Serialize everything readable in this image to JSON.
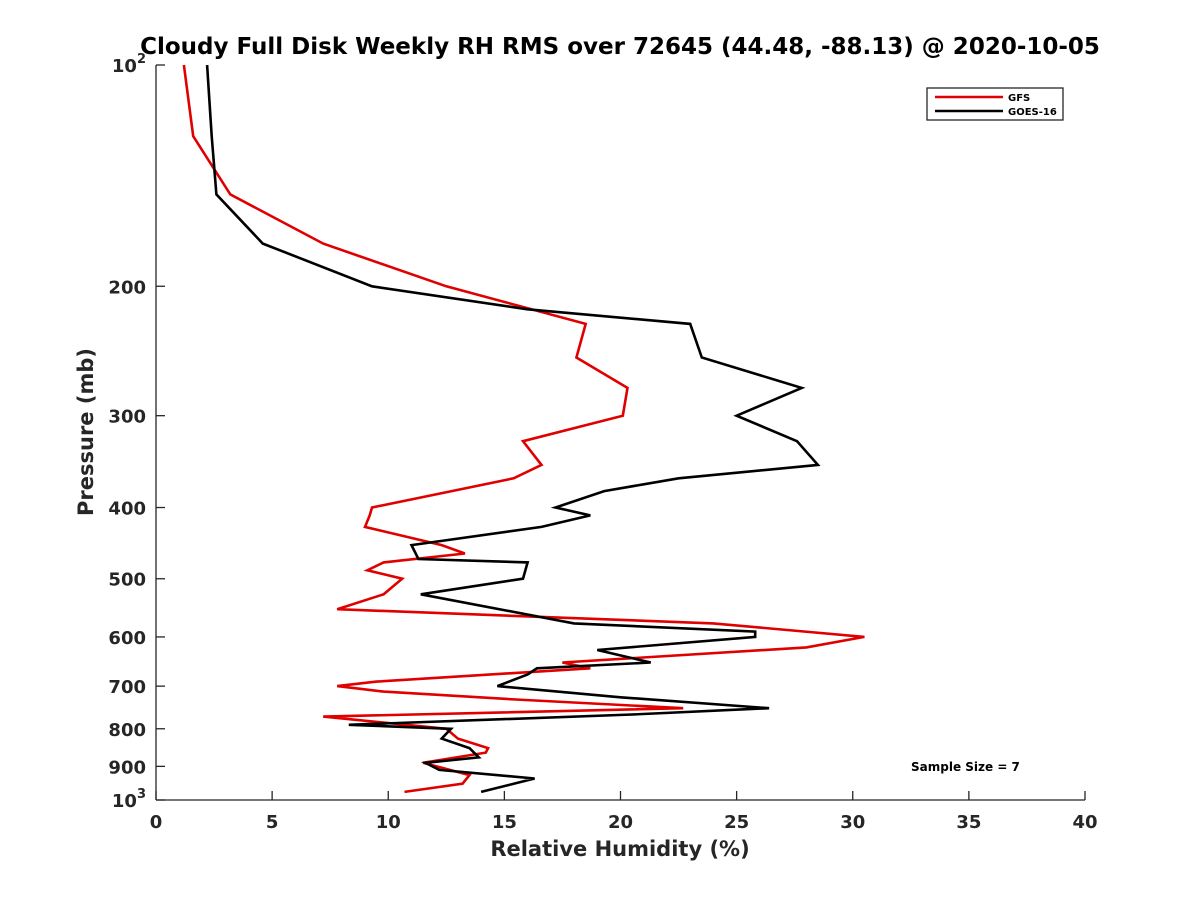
{
  "chart_data": {
    "type": "line",
    "title": "Cloudy Full Disk Weekly RH RMS over 72645 (44.48, -88.13) @ 2020-10-05",
    "xlabel": "Relative Humidity (%)",
    "ylabel": "Pressure (mb)",
    "xlim": [
      0,
      40
    ],
    "ylim": [
      100,
      1000
    ],
    "yscale": "log",
    "y_reversed": true,
    "grid": false,
    "legend_position": "top-right",
    "x_ticks": [
      "0",
      "5",
      "10",
      "15",
      "20",
      "25",
      "30",
      "35",
      "40"
    ],
    "y_ticks": [
      {
        "value": 100,
        "base": "10",
        "exp": "2"
      },
      {
        "value": 200,
        "label": "200"
      },
      {
        "value": 300,
        "label": "300"
      },
      {
        "value": 400,
        "label": "400"
      },
      {
        "value": 500,
        "label": "500"
      },
      {
        "value": 600,
        "label": "600"
      },
      {
        "value": 700,
        "label": "700"
      },
      {
        "value": 800,
        "label": "800"
      },
      {
        "value": 900,
        "label": "900"
      },
      {
        "value": 1000,
        "base": "10",
        "exp": "3"
      }
    ],
    "annotation": "Sample Size = 7",
    "series": [
      {
        "name": "GFS",
        "color": "#e00000",
        "points": [
          [
            1.2,
            100
          ],
          [
            1.6,
            125
          ],
          [
            3.2,
            150
          ],
          [
            7.2,
            175
          ],
          [
            12.5,
            200
          ],
          [
            18.5,
            225
          ],
          [
            18.1,
            250
          ],
          [
            20.3,
            275
          ],
          [
            20.1,
            300
          ],
          [
            15.8,
            325
          ],
          [
            16.6,
            350
          ],
          [
            15.4,
            365
          ],
          [
            9.3,
            400
          ],
          [
            9.2,
            410
          ],
          [
            9.0,
            425
          ],
          [
            12.3,
            450
          ],
          [
            13.3,
            462
          ],
          [
            9.8,
            475
          ],
          [
            9.1,
            487
          ],
          [
            10.6,
            500
          ],
          [
            9.8,
            525
          ],
          [
            7.8,
            550
          ],
          [
            24.0,
            575
          ],
          [
            30.5,
            600
          ],
          [
            28.0,
            620
          ],
          [
            17.5,
            650
          ],
          [
            18.7,
            662
          ],
          [
            9.5,
            690
          ],
          [
            7.8,
            700
          ],
          [
            9.8,
            712
          ],
          [
            15.5,
            730
          ],
          [
            22.7,
            750
          ],
          [
            7.2,
            770
          ],
          [
            12.5,
            800
          ],
          [
            13.0,
            825
          ],
          [
            14.3,
            850
          ],
          [
            14.2,
            862
          ],
          [
            11.5,
            890
          ],
          [
            13.5,
            925
          ],
          [
            13.2,
            950
          ],
          [
            10.7,
            975
          ]
        ]
      },
      {
        "name": "GOES-16",
        "color": "#000000",
        "points": [
          [
            2.2,
            100
          ],
          [
            2.4,
            125
          ],
          [
            2.6,
            150
          ],
          [
            4.6,
            175
          ],
          [
            9.3,
            200
          ],
          [
            16.0,
            215
          ],
          [
            23.0,
            225
          ],
          [
            23.5,
            250
          ],
          [
            27.8,
            275
          ],
          [
            25.0,
            300
          ],
          [
            27.6,
            325
          ],
          [
            28.5,
            350
          ],
          [
            22.5,
            365
          ],
          [
            19.3,
            380
          ],
          [
            17.2,
            400
          ],
          [
            18.7,
            410
          ],
          [
            16.6,
            425
          ],
          [
            11.0,
            450
          ],
          [
            11.3,
            470
          ],
          [
            16.0,
            475
          ],
          [
            15.8,
            500
          ],
          [
            11.4,
            525
          ],
          [
            18.0,
            575
          ],
          [
            25.8,
            590
          ],
          [
            25.8,
            600
          ],
          [
            19.0,
            625
          ],
          [
            21.3,
            650
          ],
          [
            16.4,
            662
          ],
          [
            16.0,
            675
          ],
          [
            14.7,
            700
          ],
          [
            20.0,
            725
          ],
          [
            26.4,
            750
          ],
          [
            20.5,
            765
          ],
          [
            8.3,
            790
          ],
          [
            12.7,
            800
          ],
          [
            12.3,
            825
          ],
          [
            13.5,
            850
          ],
          [
            13.9,
            875
          ],
          [
            11.6,
            890
          ],
          [
            12.2,
            910
          ],
          [
            16.3,
            935
          ],
          [
            14.0,
            975
          ]
        ]
      }
    ]
  }
}
